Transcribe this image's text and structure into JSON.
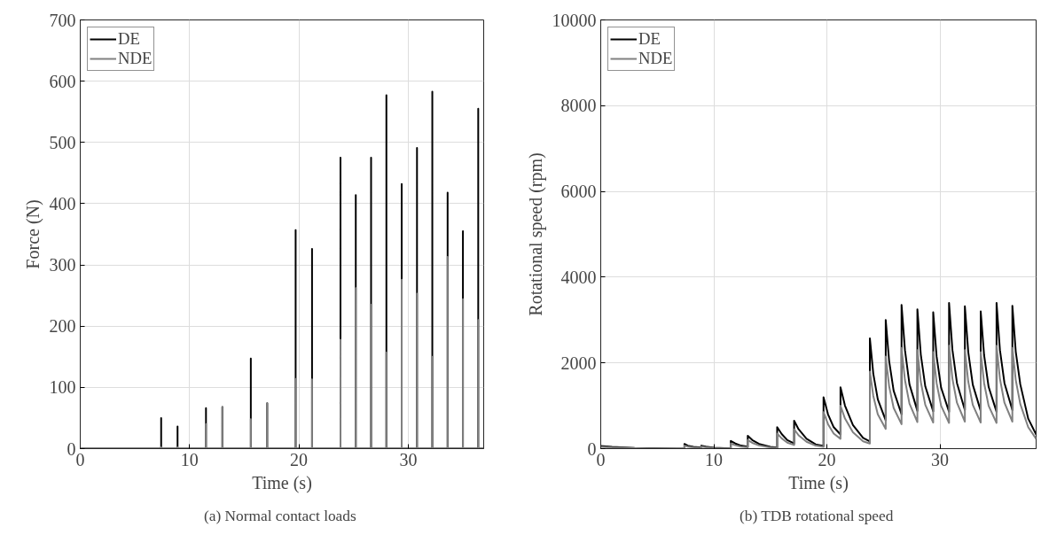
{
  "chart_data": [
    {
      "type": "line",
      "xlabel": "Time (s)",
      "ylabel": "Force (N)",
      "xlim": [
        0,
        36.9
      ],
      "ylim": [
        0,
        700
      ],
      "xticks": [
        0,
        10,
        20,
        30
      ],
      "yticks": [
        0,
        100,
        200,
        300,
        400,
        500,
        600,
        700
      ],
      "grid": true,
      "legend": "top left",
      "annotations": [
        "(a)  Normal contact loads"
      ],
      "series": [
        {
          "name": "DE",
          "color": "#000000",
          "x": [
            0,
            7.4,
            7.4,
            7.4,
            8.9,
            8.9,
            8.9,
            11.5,
            11.5,
            11.5,
            13.0,
            13.0,
            13.0,
            15.6,
            15.6,
            15.6,
            17.1,
            17.1,
            17.1,
            19.7,
            19.7,
            19.7,
            21.2,
            21.2,
            21.2,
            23.8,
            23.8,
            23.8,
            25.2,
            25.2,
            25.2,
            26.6,
            26.6,
            26.6,
            28.0,
            28.0,
            28.0,
            29.4,
            29.4,
            29.4,
            30.8,
            30.8,
            30.8,
            32.2,
            32.2,
            32.2,
            33.6,
            33.6,
            33.6,
            35.0,
            35.0,
            35.0,
            36.4,
            36.4,
            36.4,
            36.9
          ],
          "values": [
            0,
            0,
            50,
            0,
            0,
            36,
            0,
            0,
            66,
            0,
            0,
            68,
            0,
            0,
            147,
            0,
            0,
            74,
            0,
            0,
            357,
            0,
            0,
            326,
            0,
            0,
            475,
            0,
            0,
            414,
            0,
            0,
            475,
            0,
            0,
            577,
            0,
            0,
            432,
            0,
            0,
            491,
            0,
            0,
            583,
            0,
            0,
            418,
            0,
            0,
            355,
            0,
            0,
            555,
            0,
            0
          ]
        },
        {
          "name": "NDE",
          "color": "#808080",
          "x": [
            0,
            7.4,
            7.4,
            7.4,
            8.9,
            8.9,
            8.9,
            11.5,
            11.5,
            11.5,
            13.0,
            13.0,
            13.0,
            15.6,
            15.6,
            15.6,
            17.1,
            17.1,
            17.1,
            19.7,
            19.7,
            19.7,
            21.2,
            21.2,
            21.2,
            23.8,
            23.8,
            23.8,
            25.2,
            25.2,
            25.2,
            26.6,
            26.6,
            26.6,
            28.0,
            28.0,
            28.0,
            29.4,
            29.4,
            29.4,
            30.8,
            30.8,
            30.8,
            32.2,
            32.2,
            32.2,
            33.6,
            33.6,
            33.6,
            35.0,
            35.0,
            35.0,
            36.4,
            36.4,
            36.4,
            36.9
          ],
          "values": [
            0,
            0,
            2,
            0,
            0,
            2,
            0,
            0,
            40,
            0,
            0,
            68,
            0,
            0,
            48,
            0,
            0,
            74,
            0,
            0,
            114,
            0,
            0,
            113,
            0,
            0,
            178,
            0,
            0,
            262,
            0,
            0,
            235,
            0,
            0,
            157,
            0,
            0,
            276,
            0,
            0,
            253,
            0,
            0,
            150,
            0,
            0,
            313,
            0,
            0,
            244,
            0,
            0,
            210,
            0,
            0
          ]
        }
      ]
    },
    {
      "type": "line",
      "xlabel": "Time (s)",
      "ylabel": "Rotational speed (rpm)",
      "xlim": [
        0,
        38.5
      ],
      "ylim": [
        0,
        10000
      ],
      "xticks": [
        0,
        10,
        20,
        30
      ],
      "yticks": [
        0,
        2000,
        4000,
        6000,
        8000,
        10000
      ],
      "grid": true,
      "legend": "top left",
      "annotations": [
        "(b)  TDB rotational speed"
      ],
      "series": [
        {
          "name": "DE",
          "color": "#000000",
          "x": [
            0,
            1,
            3,
            5,
            7.4,
            7.4,
            7.7,
            8.2,
            8.9,
            8.9,
            9.3,
            10,
            11.5,
            11.5,
            11.9,
            12.4,
            13.0,
            13.0,
            13.4,
            14,
            15,
            15.6,
            15.6,
            16,
            16.5,
            17.1,
            17.1,
            17.5,
            18.2,
            19,
            19.7,
            19.7,
            20.1,
            20.6,
            21.2,
            21.2,
            21.6,
            22.3,
            23.2,
            23.8,
            23.8,
            24.1,
            24.5,
            25.2,
            25.2,
            25.5,
            25.9,
            26.6,
            26.6,
            26.9,
            27.3,
            28.0,
            28.0,
            28.3,
            28.7,
            29.4,
            29.4,
            29.7,
            30.1,
            30.8,
            30.8,
            31.1,
            31.5,
            32.2,
            32.2,
            32.5,
            32.9,
            33.6,
            33.6,
            33.9,
            34.3,
            35.0,
            35.0,
            35.3,
            35.7,
            36.4,
            36.4,
            36.7,
            37.1,
            37.8,
            38.5
          ],
          "values": [
            60,
            40,
            15,
            3,
            0,
            110,
            70,
            40,
            25,
            70,
            45,
            20,
            5,
            180,
            120,
            70,
            45,
            300,
            200,
            110,
            40,
            25,
            500,
            340,
            200,
            120,
            650,
            450,
            230,
            100,
            60,
            1200,
            800,
            500,
            330,
            1430,
            1000,
            550,
            250,
            170,
            2570,
            1750,
            1150,
            660,
            3000,
            2050,
            1350,
            800,
            3350,
            2300,
            1500,
            880,
            3250,
            2200,
            1450,
            870,
            3180,
            2150,
            1420,
            860,
            3400,
            2300,
            1530,
            900,
            3320,
            2250,
            1490,
            880,
            3200,
            2180,
            1440,
            860,
            3400,
            2300,
            1530,
            900,
            3330,
            2260,
            1500,
            700,
            330
          ]
        },
        {
          "name": "NDE",
          "color": "#808080",
          "x": [
            0,
            1,
            3,
            5,
            7.4,
            7.4,
            7.7,
            8.2,
            8.9,
            8.9,
            9.3,
            10,
            11.5,
            11.5,
            11.9,
            12.4,
            13.0,
            13.0,
            13.4,
            14,
            15,
            15.6,
            15.6,
            16,
            16.5,
            17.1,
            17.1,
            17.5,
            18.2,
            19,
            19.7,
            19.7,
            20.1,
            20.6,
            21.2,
            21.2,
            21.6,
            22.3,
            23.2,
            23.8,
            23.8,
            24.1,
            24.5,
            25.2,
            25.2,
            25.5,
            25.9,
            26.6,
            26.6,
            26.9,
            27.3,
            28.0,
            28.0,
            28.3,
            28.7,
            29.4,
            29.4,
            29.7,
            30.1,
            30.8,
            30.8,
            31.1,
            31.5,
            32.2,
            32.2,
            32.5,
            32.9,
            33.6,
            33.6,
            33.9,
            34.3,
            35.0,
            35.0,
            35.3,
            35.7,
            36.4,
            36.4,
            36.7,
            37.1,
            37.8,
            38.5
          ],
          "values": [
            40,
            25,
            10,
            2,
            0,
            70,
            45,
            25,
            15,
            45,
            30,
            12,
            3,
            120,
            80,
            45,
            30,
            200,
            135,
            75,
            25,
            15,
            350,
            240,
            140,
            85,
            450,
            310,
            160,
            70,
            40,
            850,
            570,
            350,
            230,
            1000,
            700,
            380,
            170,
            120,
            1800,
            1230,
            800,
            460,
            2150,
            1460,
            950,
            570,
            2350,
            1600,
            1050,
            620,
            2300,
            1560,
            1020,
            610,
            2250,
            1530,
            1000,
            600,
            2400,
            1630,
            1070,
            630,
            2300,
            1560,
            1020,
            610,
            2250,
            1530,
            1000,
            600,
            2400,
            1630,
            1070,
            630,
            2350,
            1600,
            1040,
            500,
            230
          ]
        }
      ]
    }
  ]
}
